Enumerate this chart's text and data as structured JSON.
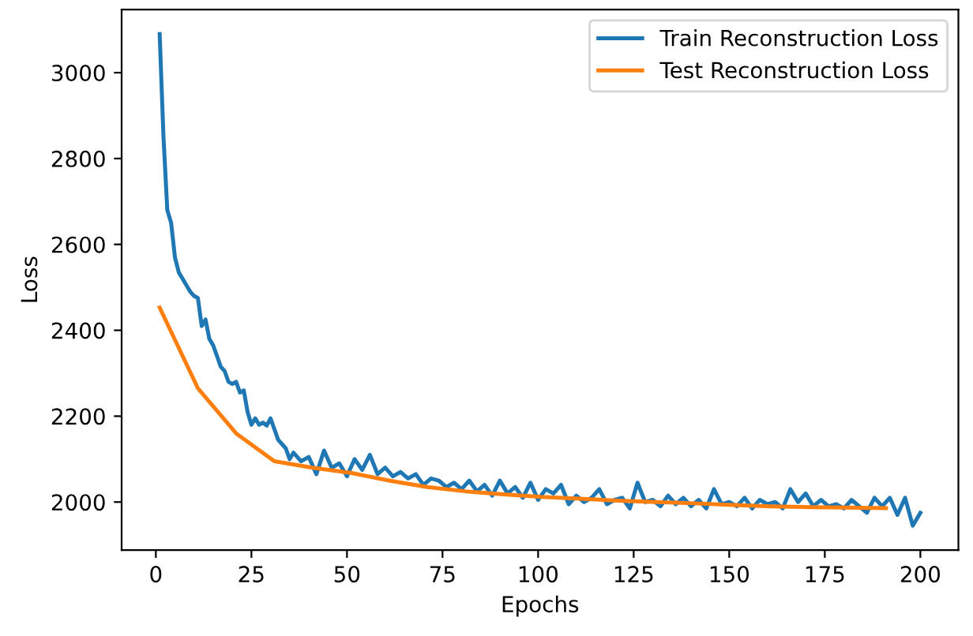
{
  "chart_data": {
    "type": "line",
    "xlabel": "Epochs",
    "ylabel": "Loss",
    "xlim": [
      -8.95,
      209.95
    ],
    "ylim": [
      1888,
      3147
    ],
    "xticks": [
      0,
      25,
      50,
      75,
      100,
      125,
      150,
      175,
      200
    ],
    "yticks": [
      2000,
      2200,
      2400,
      2600,
      2800,
      3000
    ],
    "legend": "top right",
    "grid": false,
    "series": [
      {
        "name": "Train Reconstruction Loss",
        "color": "#1f77b4",
        "x": [
          1,
          2,
          3,
          4,
          5,
          6,
          7,
          8,
          9,
          10,
          11,
          12,
          13,
          14,
          15,
          16,
          17,
          18,
          19,
          20,
          21,
          22,
          23,
          24,
          25,
          26,
          27,
          28,
          29,
          30,
          31,
          32,
          33,
          34,
          35,
          36,
          38,
          40,
          42,
          44,
          46,
          48,
          50,
          52,
          54,
          56,
          58,
          60,
          62,
          64,
          66,
          68,
          70,
          72,
          74,
          76,
          78,
          80,
          82,
          84,
          86,
          88,
          90,
          92,
          94,
          96,
          98,
          100,
          102,
          104,
          106,
          108,
          110,
          112,
          114,
          116,
          118,
          120,
          122,
          124,
          126,
          128,
          130,
          132,
          134,
          136,
          138,
          140,
          142,
          144,
          146,
          148,
          150,
          152,
          154,
          156,
          158,
          160,
          162,
          164,
          166,
          168,
          170,
          172,
          174,
          176,
          178,
          180,
          182,
          184,
          186,
          188,
          190,
          192,
          194,
          196,
          198,
          200
        ],
        "values": [
          3090,
          2850,
          2680,
          2650,
          2570,
          2535,
          2520,
          2505,
          2490,
          2480,
          2475,
          2410,
          2425,
          2380,
          2365,
          2340,
          2315,
          2305,
          2280,
          2275,
          2280,
          2255,
          2260,
          2210,
          2180,
          2195,
          2180,
          2185,
          2178,
          2195,
          2170,
          2145,
          2135,
          2125,
          2100,
          2115,
          2095,
          2105,
          2065,
          2120,
          2080,
          2090,
          2060,
          2100,
          2075,
          2110,
          2065,
          2080,
          2060,
          2070,
          2055,
          2065,
          2040,
          2055,
          2050,
          2035,
          2045,
          2030,
          2050,
          2025,
          2040,
          2015,
          2050,
          2020,
          2035,
          2010,
          2045,
          2005,
          2030,
          2020,
          2040,
          1995,
          2015,
          2000,
          2010,
          2030,
          1995,
          2005,
          2010,
          1985,
          2045,
          2000,
          2005,
          1990,
          2015,
          1995,
          2010,
          1990,
          2005,
          1985,
          2030,
          1995,
          2000,
          1990,
          2010,
          1985,
          2005,
          1995,
          2000,
          1985,
          2030,
          2000,
          2020,
          1990,
          2005,
          1990,
          1995,
          1985,
          2005,
          1990,
          1975,
          2010,
          1990,
          2010,
          1970,
          2010,
          1945,
          1975
        ]
      },
      {
        "name": "Test Reconstruction Loss",
        "color": "#ff7f0e",
        "x": [
          1,
          11,
          21,
          31,
          41,
          51,
          61,
          71,
          81,
          91,
          101,
          111,
          121,
          131,
          141,
          151,
          161,
          171,
          181,
          191
        ],
        "values": [
          2453,
          2265,
          2160,
          2095,
          2080,
          2068,
          2050,
          2035,
          2025,
          2018,
          2012,
          2008,
          2003,
          2000,
          1997,
          1993,
          1990,
          1988,
          1987,
          1986
        ]
      }
    ]
  }
}
